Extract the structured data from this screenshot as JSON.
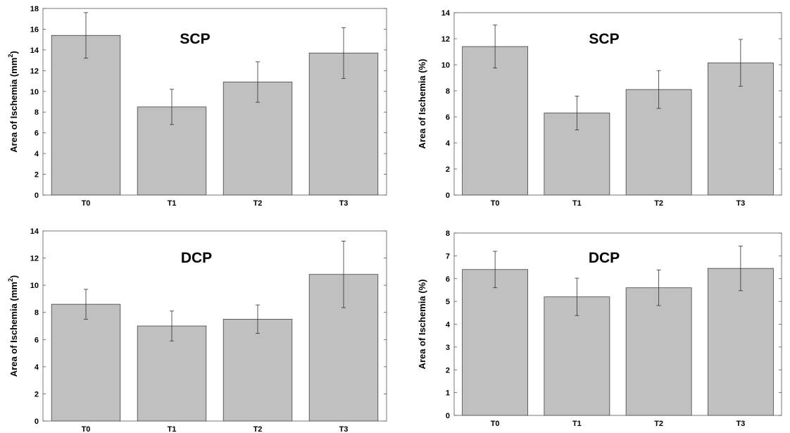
{
  "chart_data": [
    {
      "type": "bar",
      "title": "SCP",
      "ylabel": "Area of Ischemia (mm²)",
      "ylabel_main": "Area of Ischemia (mm",
      "ylabel_sup": "2",
      "ylabel_tail": ")",
      "categories": [
        "T0",
        "T1",
        "T2",
        "T3"
      ],
      "values": [
        15.4,
        8.5,
        10.9,
        13.7
      ],
      "errors": [
        2.2,
        1.7,
        1.95,
        2.45
      ],
      "ylim": [
        0,
        18
      ],
      "yticks": [
        0,
        2,
        4,
        6,
        8,
        10,
        12,
        14,
        16,
        18
      ]
    },
    {
      "type": "bar",
      "title": "SCP",
      "ylabel": "Area of Ischemia (%)",
      "categories": [
        "T0",
        "T1",
        "T2",
        "T3"
      ],
      "values": [
        11.4,
        6.3,
        8.1,
        10.15
      ],
      "errors": [
        1.65,
        1.3,
        1.45,
        1.8
      ],
      "ylim": [
        0,
        14
      ],
      "yticks": [
        0,
        2,
        4,
        6,
        8,
        10,
        12,
        14
      ]
    },
    {
      "type": "bar",
      "title": "DCP",
      "ylabel": "Area of Ischemia (mm²)",
      "ylabel_main": "Area of Ischemia (mm",
      "ylabel_sup": "2",
      "ylabel_tail": ")",
      "categories": [
        "T0",
        "T1",
        "T2",
        "T3"
      ],
      "values": [
        8.6,
        7.0,
        7.5,
        10.8
      ],
      "errors": [
        1.1,
        1.1,
        1.05,
        2.45
      ],
      "ylim": [
        0,
        14
      ],
      "yticks": [
        0,
        2,
        4,
        6,
        8,
        10,
        12,
        14
      ]
    },
    {
      "type": "bar",
      "title": "DCP",
      "ylabel": "Area of Ischemia (%)",
      "categories": [
        "T0",
        "T1",
        "T2",
        "T3"
      ],
      "values": [
        6.4,
        5.2,
        5.6,
        6.45
      ],
      "errors": [
        0.8,
        0.82,
        0.78,
        0.98
      ],
      "ylim": [
        0,
        8
      ],
      "yticks": [
        0,
        1,
        2,
        3,
        4,
        5,
        6,
        7,
        8
      ]
    }
  ]
}
